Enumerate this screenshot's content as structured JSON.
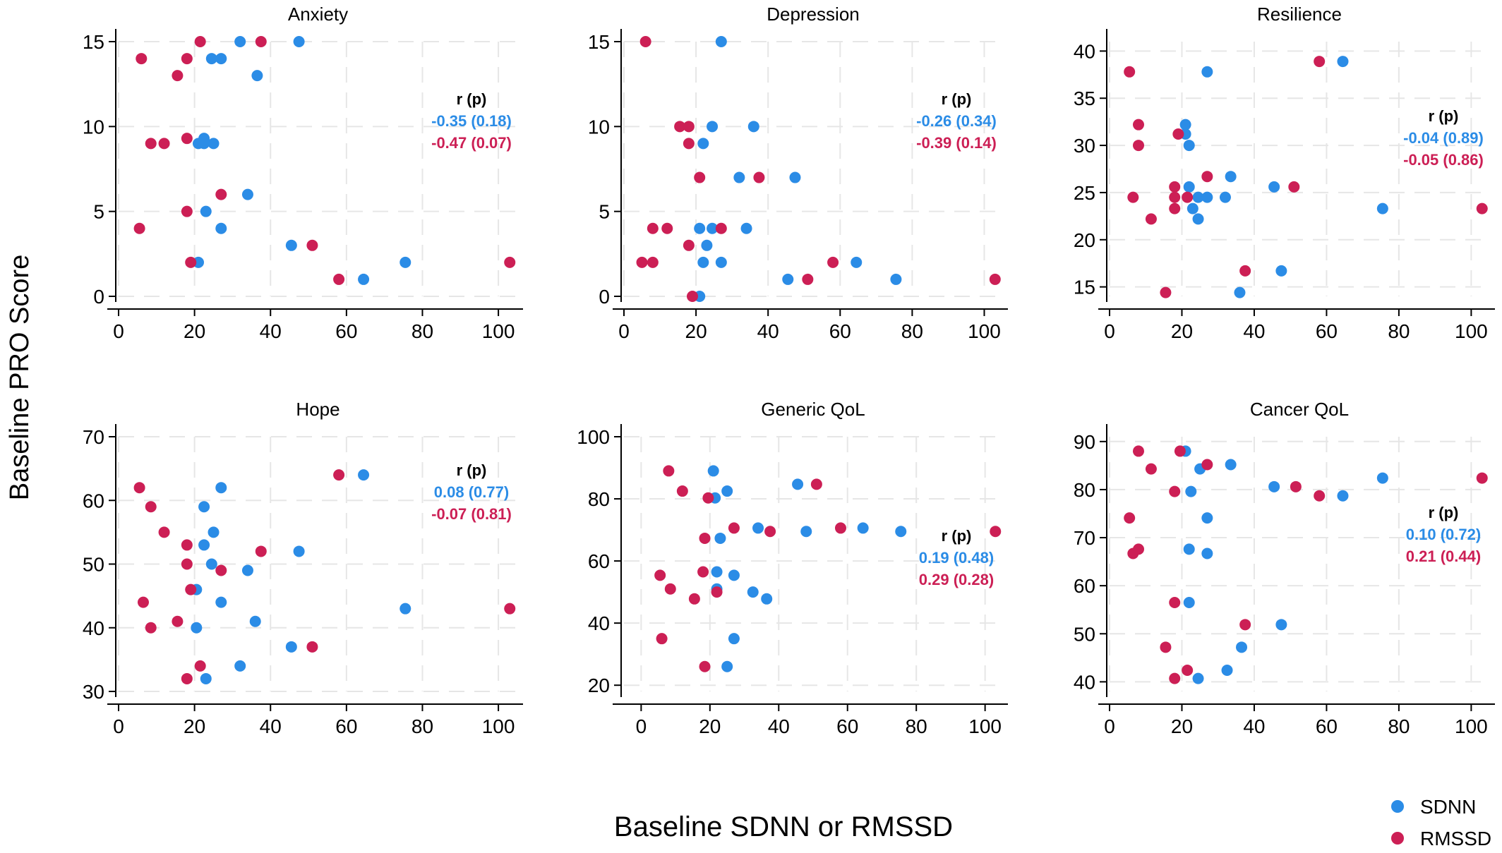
{
  "figure": {
    "ylabel": "Baseline PRO Score",
    "xlabel": "Baseline SDNN or RMSSD",
    "legend": {
      "placement": "bottom-right",
      "entries": [
        {
          "name": "SDNN",
          "color": "#2b8ce6"
        },
        {
          "name": "RMSSD",
          "color": "#cc1f55"
        }
      ]
    }
  },
  "chart_data": [
    {
      "type": "scatter",
      "title": "Anxiety",
      "xlim": [
        0,
        105
      ],
      "ylim": [
        0,
        15
      ],
      "xticks": [
        0,
        20,
        40,
        60,
        80,
        100
      ],
      "yticks": [
        0,
        5,
        10,
        15
      ],
      "grid": true,
      "annotation": {
        "header": "r (p)",
        "lines": [
          "-0.35 (0.18)",
          "-0.47 (0.07)"
        ]
      },
      "series": [
        {
          "name": "SDNN",
          "color": "#2b8ce6",
          "points": [
            [
              32,
              15
            ],
            [
              47.5,
              15
            ],
            [
              24.5,
              14
            ],
            [
              27,
              14
            ],
            [
              36.5,
              13
            ],
            [
              22.5,
              9.3
            ],
            [
              21,
              9
            ],
            [
              22.5,
              9
            ],
            [
              25,
              9
            ],
            [
              34,
              6
            ],
            [
              23,
              5
            ],
            [
              27,
              4
            ],
            [
              21,
              2
            ],
            [
              45.5,
              3
            ],
            [
              75.5,
              2
            ],
            [
              64.5,
              1
            ]
          ]
        },
        {
          "name": "RMSSD",
          "color": "#cc1f55",
          "points": [
            [
              21.5,
              15
            ],
            [
              37.5,
              15
            ],
            [
              6,
              14
            ],
            [
              18,
              14
            ],
            [
              15.5,
              13
            ],
            [
              8.5,
              9
            ],
            [
              12,
              9
            ],
            [
              18,
              9.3
            ],
            [
              27,
              6
            ],
            [
              18,
              5
            ],
            [
              5.5,
              4
            ],
            [
              19,
              2
            ],
            [
              51,
              3
            ],
            [
              58,
              1
            ],
            [
              103,
              2
            ]
          ]
        }
      ]
    },
    {
      "type": "scatter",
      "title": "Depression",
      "xlim": [
        0,
        105
      ],
      "ylim": [
        0,
        15
      ],
      "xticks": [
        0,
        20,
        40,
        60,
        80,
        100
      ],
      "yticks": [
        0,
        5,
        10,
        15
      ],
      "grid": true,
      "annotation": {
        "header": "r (p)",
        "lines": [
          "-0.26 (0.34)",
          "-0.39 (0.14)"
        ]
      },
      "series": [
        {
          "name": "SDNN",
          "color": "#2b8ce6",
          "points": [
            [
              27,
              15
            ],
            [
              24.5,
              10
            ],
            [
              36,
              10
            ],
            [
              22,
              9
            ],
            [
              32,
              7
            ],
            [
              47.5,
              7
            ],
            [
              21,
              4
            ],
            [
              24.5,
              4
            ],
            [
              34,
              4
            ],
            [
              23,
              3
            ],
            [
              22,
              2
            ],
            [
              27,
              2
            ],
            [
              45.5,
              1
            ],
            [
              64.5,
              2
            ],
            [
              75.5,
              1
            ],
            [
              21,
              0
            ]
          ]
        },
        {
          "name": "RMSSD",
          "color": "#cc1f55",
          "points": [
            [
              6,
              15
            ],
            [
              15.5,
              10
            ],
            [
              18,
              10
            ],
            [
              18,
              9
            ],
            [
              21,
              7
            ],
            [
              37.5,
              7
            ],
            [
              8,
              4
            ],
            [
              12,
              4
            ],
            [
              27,
              4
            ],
            [
              18,
              3
            ],
            [
              5,
              2
            ],
            [
              8,
              2
            ],
            [
              51,
              1
            ],
            [
              58,
              2
            ],
            [
              103,
              1
            ],
            [
              19,
              0
            ]
          ]
        }
      ]
    },
    {
      "type": "scatter",
      "title": "Resilience",
      "xlim": [
        0,
        105
      ],
      "ylim": [
        14,
        41
      ],
      "xticks": [
        0,
        20,
        40,
        60,
        80,
        100
      ],
      "yticks": [
        15,
        20,
        25,
        30,
        35,
        40
      ],
      "grid": true,
      "annotation": {
        "header": "r (p)",
        "lines": [
          "-0.04 (0.89)",
          "-0.05 (0.86)"
        ]
      },
      "series": [
        {
          "name": "SDNN",
          "color": "#2b8ce6",
          "points": [
            [
              64.5,
              38.9
            ],
            [
              27,
              37.8
            ],
            [
              21,
              32.2
            ],
            [
              21,
              31.2
            ],
            [
              22,
              30
            ],
            [
              33.5,
              26.7
            ],
            [
              22,
              25.6
            ],
            [
              45.5,
              25.6
            ],
            [
              24.5,
              24.5
            ],
            [
              27,
              24.5
            ],
            [
              32,
              24.5
            ],
            [
              23,
              23.3
            ],
            [
              75.5,
              23.3
            ],
            [
              24.5,
              22.2
            ],
            [
              47.5,
              16.7
            ],
            [
              36,
              14.4
            ]
          ]
        },
        {
          "name": "RMSSD",
          "color": "#cc1f55",
          "points": [
            [
              58,
              38.9
            ],
            [
              5.5,
              37.8
            ],
            [
              8,
              32.2
            ],
            [
              19,
              31.2
            ],
            [
              8,
              30
            ],
            [
              27,
              26.7
            ],
            [
              18,
              25.6
            ],
            [
              51,
              25.6
            ],
            [
              6.5,
              24.5
            ],
            [
              18,
              24.5
            ],
            [
              21.5,
              24.5
            ],
            [
              18,
              23.3
            ],
            [
              103,
              23.3
            ],
            [
              11.5,
              22.2
            ],
            [
              37.5,
              16.7
            ],
            [
              15.5,
              14.4
            ]
          ]
        }
      ]
    },
    {
      "type": "scatter",
      "title": "Hope",
      "xlim": [
        0,
        105
      ],
      "ylim": [
        30,
        70
      ],
      "xticks": [
        0,
        20,
        40,
        60,
        80,
        100
      ],
      "yticks": [
        30,
        40,
        50,
        60,
        70
      ],
      "grid": true,
      "annotation": {
        "header": "r (p)",
        "lines": [
          "0.08 (0.77)",
          "-0.07 (0.81)"
        ]
      },
      "series": [
        {
          "name": "SDNN",
          "color": "#2b8ce6",
          "points": [
            [
              64.5,
              64
            ],
            [
              27,
              62
            ],
            [
              22.5,
              59
            ],
            [
              25,
              55
            ],
            [
              22.5,
              53
            ],
            [
              47.5,
              52
            ],
            [
              24.5,
              50
            ],
            [
              34,
              49
            ],
            [
              20.5,
              46
            ],
            [
              27,
              44
            ],
            [
              75.5,
              43
            ],
            [
              36,
              41
            ],
            [
              20.5,
              40
            ],
            [
              45.5,
              37
            ],
            [
              32,
              34
            ],
            [
              23,
              32
            ]
          ]
        },
        {
          "name": "RMSSD",
          "color": "#cc1f55",
          "points": [
            [
              58,
              64
            ],
            [
              5.5,
              62
            ],
            [
              8.5,
              59
            ],
            [
              12,
              55
            ],
            [
              18,
              53
            ],
            [
              37.5,
              52
            ],
            [
              18,
              50
            ],
            [
              27,
              49
            ],
            [
              19,
              46
            ],
            [
              6.5,
              44
            ],
            [
              103,
              43
            ],
            [
              15.5,
              41
            ],
            [
              8.5,
              40
            ],
            [
              51,
              37
            ],
            [
              21.5,
              34
            ],
            [
              18,
              32
            ]
          ]
        }
      ]
    },
    {
      "type": "scatter",
      "title": "Generic QoL",
      "xlim": [
        -5,
        105
      ],
      "ylim": [
        18,
        100
      ],
      "xticks": [
        0,
        20,
        40,
        60,
        80,
        100
      ],
      "yticks": [
        20,
        40,
        60,
        80,
        100
      ],
      "grid": true,
      "annotation": {
        "header": "r (p)",
        "lines": [
          "0.19 (0.48)",
          "0.29 (0.28)"
        ]
      },
      "series": [
        {
          "name": "SDNN",
          "color": "#2b8ce6",
          "points": [
            [
              21,
              89
            ],
            [
              45.5,
              84.7
            ],
            [
              25,
              82.5
            ],
            [
              21.5,
              80.3
            ],
            [
              34,
              70.6
            ],
            [
              48,
              69.5
            ],
            [
              64.5,
              70.6
            ],
            [
              75.5,
              69.5
            ],
            [
              23,
              67.3
            ],
            [
              22,
              56.5
            ],
            [
              27,
              55.4
            ],
            [
              22,
              51
            ],
            [
              32.5,
              50
            ],
            [
              36.5,
              47.8
            ],
            [
              27,
              35
            ],
            [
              25,
              26
            ]
          ]
        },
        {
          "name": "RMSSD",
          "color": "#cc1f55",
          "points": [
            [
              8,
              89
            ],
            [
              51,
              84.7
            ],
            [
              12,
              82.5
            ],
            [
              19.5,
              80.3
            ],
            [
              27,
              70.6
            ],
            [
              37.5,
              69.5
            ],
            [
              58,
              70.6
            ],
            [
              103,
              69.5
            ],
            [
              18.5,
              67.3
            ],
            [
              18,
              56.5
            ],
            [
              5.5,
              55.4
            ],
            [
              8.5,
              51
            ],
            [
              22,
              50
            ],
            [
              15.5,
              47.8
            ],
            [
              6,
              35
            ],
            [
              18.5,
              26
            ]
          ]
        }
      ]
    },
    {
      "type": "scatter",
      "title": "Cancer QoL",
      "xlim": [
        0,
        105
      ],
      "ylim": [
        38,
        91
      ],
      "xticks": [
        0,
        20,
        40,
        60,
        80,
        100
      ],
      "yticks": [
        40,
        50,
        60,
        70,
        80,
        90
      ],
      "grid": true,
      "annotation": {
        "header": "r (p)",
        "lines": [
          "0.10 (0.72)",
          "0.21 (0.44)"
        ]
      },
      "series": [
        {
          "name": "SDNN",
          "color": "#2b8ce6",
          "points": [
            [
              21,
              88
            ],
            [
              25,
              84.3
            ],
            [
              33.5,
              85.2
            ],
            [
              75.5,
              82.4
            ],
            [
              45.5,
              80.6
            ],
            [
              64.5,
              78.7
            ],
            [
              22.5,
              79.6
            ],
            [
              27,
              74.1
            ],
            [
              22,
              67.6
            ],
            [
              27,
              66.7
            ],
            [
              22,
              56.5
            ],
            [
              47.5,
              51.9
            ],
            [
              36.5,
              47.2
            ],
            [
              32.5,
              42.4
            ],
            [
              24.5,
              40.7
            ]
          ]
        },
        {
          "name": "RMSSD",
          "color": "#cc1f55",
          "points": [
            [
              8,
              88
            ],
            [
              19.5,
              88
            ],
            [
              11.5,
              84.3
            ],
            [
              27,
              85.2
            ],
            [
              103,
              82.4
            ],
            [
              51.5,
              80.6
            ],
            [
              58,
              78.7
            ],
            [
              18,
              79.6
            ],
            [
              5.5,
              74.1
            ],
            [
              6.5,
              66.7
            ],
            [
              8,
              67.6
            ],
            [
              18,
              56.5
            ],
            [
              37.5,
              51.9
            ],
            [
              15.5,
              47.2
            ],
            [
              21.5,
              42.4
            ],
            [
              18,
              40.7
            ]
          ]
        }
      ]
    }
  ]
}
